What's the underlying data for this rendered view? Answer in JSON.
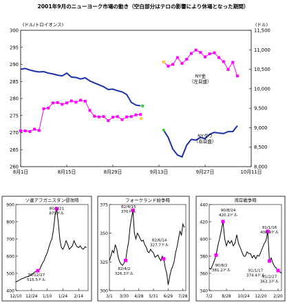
{
  "figure": {
    "title": "2001年9月のニューヨーク市場の動き（空白部分はテロの影響により休場となった期間）"
  },
  "chart_data": [
    {
      "id": "main",
      "type": "line",
      "left_axis_label": "(ドル/トロイオンス)",
      "right_axis_label": "(ドル)",
      "ylim_left": [
        260,
        300
      ],
      "ylim_right": [
        8000,
        11500
      ],
      "left_ticks": [
        260,
        265,
        270,
        275,
        280,
        285,
        290,
        295,
        300
      ],
      "right_ticks": [
        "8,000",
        "8,500",
        "9,000",
        "9,500",
        "10,000",
        "10,500",
        "11,000",
        "11,500"
      ],
      "right_tick_values": [
        8000,
        8500,
        9000,
        9500,
        10000,
        10500,
        11000,
        11500
      ],
      "x_categories": [
        "8月1日",
        "8月15日",
        "8月29日",
        "9月13日",
        "9月27日",
        "10月11日"
      ],
      "x_range": [
        0,
        50
      ],
      "x_tick_positions": [
        0,
        10,
        20,
        30,
        40,
        50
      ],
      "annotations": [
        {
          "line1": "NY金",
          "line2": "（左目盛）",
          "at": [
            39,
            286.2
          ]
        },
        {
          "line1": "NYダウ",
          "line2": "（右目盛）",
          "at": [
            40,
            268.6
          ]
        }
      ],
      "series": [
        {
          "name": "NY金",
          "axis": "left",
          "color": "#ff00ff",
          "segments": [
            [
              [
                0,
                270.5
              ],
              [
                1,
                270.5
              ],
              [
                2,
                270.3
              ],
              [
                3,
                271
              ],
              [
                4,
                270.6
              ],
              [
                5,
                277
              ],
              [
                6,
                277.2
              ],
              [
                7,
                278.7
              ],
              [
                8,
                278.8
              ],
              [
                9,
                278.3
              ],
              [
                10,
                278.7
              ],
              [
                11,
                279.3
              ],
              [
                12,
                278.9
              ],
              [
                13,
                279.5
              ],
              [
                14,
                279.2
              ],
              [
                15,
                276.5
              ],
              [
                16,
                274.8
              ],
              [
                17,
                274.6
              ],
              [
                18,
                274.7
              ],
              [
                19,
                273.5
              ],
              [
                20,
                274.5
              ],
              [
                21,
                274.7
              ],
              [
                22,
                273.8
              ],
              [
                23,
                274.6
              ],
              [
                24,
                274.7
              ],
              [
                25,
                275.2
              ],
              [
                26,
                275.3
              ]
            ],
            [
              [
                31,
                290.7
              ],
              [
                32,
                289.5
              ],
              [
                33,
                290
              ],
              [
                34,
                292
              ],
              [
                35,
                290.3
              ],
              [
                36,
                291.5
              ],
              [
                37,
                293.2
              ],
              [
                38,
                294.2
              ],
              [
                39,
                293.5
              ],
              [
                40,
                292.2
              ],
              [
                41,
                293.1
              ],
              [
                42,
                293.4
              ],
              [
                43,
                292
              ],
              [
                44,
                290.8
              ],
              [
                45,
                288.5
              ],
              [
                46,
                290.6
              ],
              [
                47,
                286.6
              ]
            ]
          ]
        },
        {
          "name": "NYダウ",
          "axis": "right",
          "color": "#1a2fa8",
          "segments": [
            [
              [
                0,
                10500
              ],
              [
                1,
                10520
              ],
              [
                2,
                10480
              ],
              [
                3,
                10450
              ],
              [
                4,
                10430
              ],
              [
                5,
                10440
              ],
              [
                6,
                10400
              ],
              [
                7,
                10380
              ],
              [
                8,
                10350
              ],
              [
                9,
                10330
              ],
              [
                10,
                10400
              ],
              [
                11,
                10300
              ],
              [
                12,
                10290
              ],
              [
                13,
                10250
              ],
              [
                14,
                10280
              ],
              [
                15,
                10200
              ],
              [
                16,
                10150
              ],
              [
                17,
                10100
              ],
              [
                18,
                10050
              ],
              [
                19,
                9980
              ],
              [
                20,
                9990
              ],
              [
                21,
                9950
              ],
              [
                22,
                9920
              ],
              [
                23,
                9850
              ],
              [
                24,
                9650
              ],
              [
                25,
                9580
              ],
              [
                26,
                9560
              ]
            ],
            [
              [
                31,
                8940
              ],
              [
                32,
                8750
              ],
              [
                33,
                8450
              ],
              [
                34,
                8300
              ],
              [
                35,
                8250
              ],
              [
                36,
                8550
              ],
              [
                37,
                8700
              ],
              [
                38,
                8680
              ],
              [
                39,
                8750
              ],
              [
                40,
                8720
              ],
              [
                41,
                8830
              ],
              [
                42,
                8880
              ],
              [
                43,
                8860
              ],
              [
                44,
                8850
              ],
              [
                45,
                8900
              ],
              [
                46,
                8900
              ],
              [
                47,
                9050
              ]
            ]
          ]
        }
      ]
    },
    {
      "id": "sub1",
      "type": "line",
      "title": "ソ連アフガニスタン侵攻時",
      "ylim": [
        400,
        900
      ],
      "y_ticks": [
        400,
        500,
        600,
        700,
        800,
        900
      ],
      "x_categories": [
        "12/10",
        "12/24",
        "1/10",
        "1/24",
        "2/14"
      ],
      "x_range": [
        0,
        46
      ],
      "x_tick_positions": [
        0,
        10,
        20,
        30,
        40
      ],
      "annotations": [
        {
          "text": "80/1/21",
          "text2": "875ドル",
          "at": [
            26,
            870
          ]
        },
        {
          "text": "79/12/27",
          "text2": "515.5ドル",
          "at": [
            13,
            485
          ]
        }
      ],
      "markers": [
        [
          14,
          515.5
        ],
        [
          26,
          875
        ]
      ],
      "values": [
        [
          0,
          450
        ],
        [
          1,
          455
        ],
        [
          2,
          460
        ],
        [
          3,
          465
        ],
        [
          4,
          470
        ],
        [
          5,
          472
        ],
        [
          6,
          478
        ],
        [
          7,
          480
        ],
        [
          8,
          482
        ],
        [
          9,
          488
        ],
        [
          10,
          492
        ],
        [
          11,
          500
        ],
        [
          12,
          508
        ],
        [
          13,
          510
        ],
        [
          14,
          515.5
        ],
        [
          15,
          520
        ],
        [
          16,
          540
        ],
        [
          17,
          560
        ],
        [
          18,
          575
        ],
        [
          19,
          600
        ],
        [
          20,
          620
        ],
        [
          21,
          650
        ],
        [
          22,
          680
        ],
        [
          23,
          700
        ],
        [
          24,
          760
        ],
        [
          25,
          840
        ],
        [
          26,
          875
        ],
        [
          27,
          800
        ],
        [
          28,
          700
        ],
        [
          29,
          650
        ],
        [
          30,
          640
        ],
        [
          31,
          660
        ],
        [
          32,
          690
        ],
        [
          33,
          670
        ],
        [
          34,
          640
        ],
        [
          35,
          650
        ],
        [
          36,
          660
        ],
        [
          37,
          690
        ],
        [
          38,
          670
        ],
        [
          39,
          655
        ],
        [
          40,
          650
        ],
        [
          41,
          660
        ],
        [
          42,
          645
        ],
        [
          43,
          640
        ],
        [
          44,
          655
        ],
        [
          45,
          650
        ]
      ]
    },
    {
      "id": "sub2",
      "type": "line",
      "title": "フォークランド紛争時",
      "ylim": [
        300,
        375
      ],
      "y_ticks": [
        300,
        325,
        350,
        375
      ],
      "x_categories": [
        "3/1",
        "3/30",
        "4/28",
        "5/31",
        "6/29",
        "7/28"
      ],
      "x_range": [
        0,
        52
      ],
      "x_tick_positions": [
        0,
        10,
        20,
        30,
        40,
        50
      ],
      "annotations": [
        {
          "text": "82/4/15",
          "text2": "370ドル",
          "at": [
            13,
            372
          ]
        },
        {
          "text": "82/6/14",
          "text2": "327.7ドル",
          "at": [
            34,
            343
          ]
        },
        {
          "text": "82/4/2",
          "text2": "326.3ドル",
          "at": [
            10,
            318
          ]
        }
      ],
      "markers": [
        [
          11,
          326.3
        ],
        [
          16,
          370
        ],
        [
          37,
          327.7
        ]
      ],
      "values": [
        [
          0,
          326
        ],
        [
          1,
          330
        ],
        [
          2,
          335
        ],
        [
          3,
          333
        ],
        [
          4,
          340
        ],
        [
          5,
          336
        ],
        [
          6,
          329
        ],
        [
          7,
          325
        ],
        [
          8,
          323
        ],
        [
          9,
          322
        ],
        [
          10,
          324
        ],
        [
          11,
          326.3
        ],
        [
          12,
          335
        ],
        [
          13,
          342
        ],
        [
          14,
          355
        ],
        [
          15,
          363
        ],
        [
          16,
          370
        ],
        [
          17,
          350
        ],
        [
          18,
          345
        ],
        [
          19,
          350
        ],
        [
          20,
          348
        ],
        [
          21,
          345
        ],
        [
          22,
          343
        ],
        [
          23,
          344
        ],
        [
          24,
          340
        ],
        [
          25,
          338
        ],
        [
          26,
          334
        ],
        [
          27,
          333
        ],
        [
          28,
          336
        ],
        [
          29,
          334
        ],
        [
          30,
          333
        ],
        [
          31,
          329
        ],
        [
          32,
          330
        ],
        [
          33,
          331
        ],
        [
          34,
          328
        ],
        [
          35,
          326
        ],
        [
          36,
          330
        ],
        [
          37,
          327.7
        ],
        [
          38,
          320
        ],
        [
          39,
          315
        ],
        [
          40,
          305
        ],
        [
          41,
          312
        ],
        [
          42,
          318
        ],
        [
          43,
          321
        ],
        [
          44,
          325
        ],
        [
          45,
          333
        ],
        [
          46,
          338
        ],
        [
          47,
          345
        ],
        [
          48,
          352
        ],
        [
          49,
          348
        ],
        [
          50,
          358
        ],
        [
          51,
          355
        ]
      ]
    },
    {
      "id": "sub3",
      "type": "line",
      "title": "湾岸戦争時",
      "ylim": [
        340,
        440
      ],
      "y_ticks": [
        340,
        360,
        380,
        400,
        420,
        440
      ],
      "x_categories": [
        "7/2",
        "8/28",
        "10/24",
        "12/20",
        "2/20"
      ],
      "x_range": [
        0,
        42
      ],
      "x_tick_positions": [
        0,
        10,
        20,
        30,
        40
      ],
      "annotations": [
        {
          "text": "90/8/24",
          "text2": "420.2ドル",
          "at": [
            11,
            432
          ]
        },
        {
          "text": "91/1/16",
          "text2": "408.9ドル",
          "at": [
            35,
            412
          ]
        },
        {
          "text": "90/8/2",
          "text2": "381.2ドル",
          "at": [
            7,
            368
          ]
        },
        {
          "text": "91/1/17",
          "text2": "374.4ドル",
          "at": [
            27,
            362
          ]
        },
        {
          "text": "91/2/27",
          "text2": "363.3ドル",
          "at": [
            35,
            355
          ]
        }
      ],
      "markers": [
        [
          4,
          381.2
        ],
        [
          8,
          420.2
        ],
        [
          34,
          408.9
        ],
        [
          35,
          374.4
        ],
        [
          40,
          363.3
        ]
      ],
      "values": [
        [
          0,
          366
        ],
        [
          1,
          365
        ],
        [
          2,
          370
        ],
        [
          3,
          375
        ],
        [
          4,
          381.2
        ],
        [
          5,
          392
        ],
        [
          6,
          400
        ],
        [
          7,
          410
        ],
        [
          8,
          420.2
        ],
        [
          9,
          400
        ],
        [
          10,
          392
        ],
        [
          11,
          398
        ],
        [
          12,
          395
        ],
        [
          13,
          398
        ],
        [
          14,
          392
        ],
        [
          15,
          395
        ],
        [
          16,
          405
        ],
        [
          17,
          395
        ],
        [
          18,
          390
        ],
        [
          19,
          385
        ],
        [
          20,
          380
        ],
        [
          21,
          380
        ],
        [
          22,
          385
        ],
        [
          23,
          383
        ],
        [
          24,
          383
        ],
        [
          25,
          378
        ],
        [
          26,
          381
        ],
        [
          27,
          377
        ],
        [
          28,
          381
        ],
        [
          29,
          380
        ],
        [
          30,
          385
        ],
        [
          31,
          390
        ],
        [
          32,
          395
        ],
        [
          33,
          398
        ],
        [
          34,
          408.9
        ],
        [
          35,
          374.4
        ],
        [
          36,
          378
        ],
        [
          37,
          372
        ],
        [
          38,
          368
        ],
        [
          39,
          366
        ],
        [
          40,
          363.3
        ],
        [
          41,
          362
        ],
        [
          42,
          360
        ]
      ]
    }
  ]
}
